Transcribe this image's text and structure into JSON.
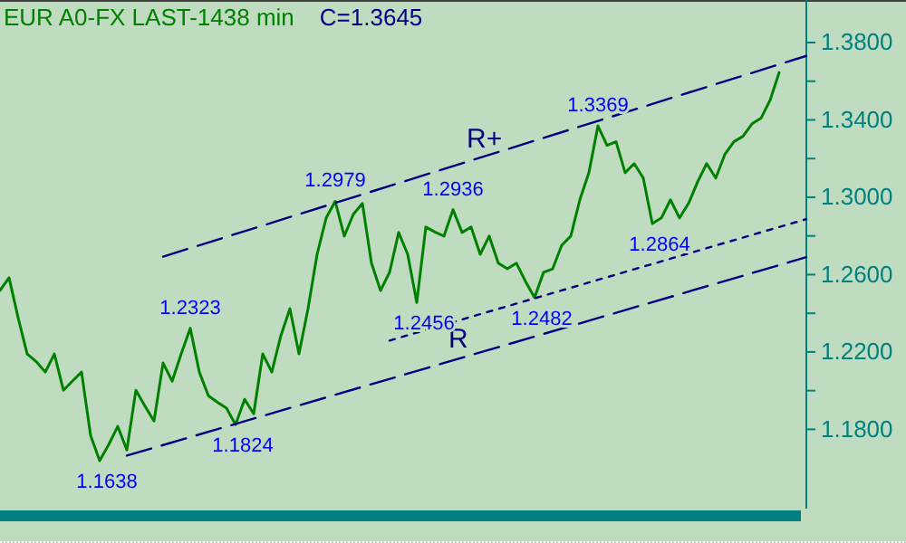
{
  "chart_data": {
    "type": "line",
    "title": "EUR A0-FX LAST-1438 min",
    "subtitle": "C=1.3645",
    "categories": [
      null,
      null,
      null,
      null,
      null,
      null,
      null,
      null,
      null,
      null,
      null,
      null,
      null,
      null,
      null,
      null,
      null,
      null,
      null,
      null,
      null,
      null,
      null,
      null,
      null,
      null,
      null,
      null,
      null,
      null,
      null,
      null,
      null,
      null,
      null,
      null,
      null,
      null,
      null,
      null,
      null,
      null,
      null,
      null,
      null,
      null,
      null,
      null,
      null,
      null,
      null,
      null,
      null,
      null,
      null,
      null,
      null,
      null,
      null,
      null,
      null,
      null,
      null,
      null,
      null,
      null,
      null,
      null,
      null,
      null,
      null,
      null,
      null,
      null,
      null,
      null,
      null,
      null,
      null,
      null,
      null,
      null,
      null,
      null,
      null,
      null,
      null,
      null,
      null,
      null
    ],
    "ylim": [
      1.139,
      1.402
    ],
    "yticks": [
      {
        "value": 1.18,
        "label": "1.1800"
      },
      {
        "value": 1.2,
        "label": null
      },
      {
        "value": 1.22,
        "label": "1.2200"
      },
      {
        "value": 1.24,
        "label": null
      },
      {
        "value": 1.26,
        "label": "1.2600"
      },
      {
        "value": 1.28,
        "label": null
      },
      {
        "value": 1.3,
        "label": "1.3000"
      },
      {
        "value": 1.32,
        "label": null
      },
      {
        "value": 1.34,
        "label": "1.3400"
      },
      {
        "value": 1.36,
        "label": null
      },
      {
        "value": 1.38,
        "label": "1.3800"
      }
    ],
    "tick_labels": "y",
    "marker": "none",
    "series": [
      {
        "color": "#008000",
        "line_style": "solid",
        "values": [
          1.2518,
          1.2584,
          1.2377,
          1.219,
          1.215,
          1.2096,
          1.219,
          1.2002,
          1.205,
          1.2096,
          1.1768,
          1.1638,
          1.1721,
          1.1815,
          1.1693,
          1.2002,
          1.192,
          1.1843,
          1.2143,
          1.2049,
          1.219,
          1.2323,
          1.2096,
          1.1974,
          1.194,
          1.1909,
          1.1824,
          1.1955,
          1.188,
          1.219,
          1.2096,
          1.2284,
          1.2424,
          1.219,
          1.2424,
          1.2705,
          1.2893,
          1.2979,
          1.2799,
          1.2912,
          1.2968,
          1.2659,
          1.2518,
          1.2612,
          1.2818,
          1.2705,
          1.2456,
          1.2846,
          1.282,
          1.2799,
          1.2936,
          1.2818,
          1.2846,
          1.2705,
          1.2799,
          1.2659,
          1.263,
          1.2659,
          1.2565,
          1.2482,
          1.2612,
          1.263,
          1.2752,
          1.2799,
          1.2987,
          1.3127,
          1.3369,
          1.3268,
          1.3287,
          1.3127,
          1.3174,
          1.3099,
          1.2864,
          1.2893,
          1.2987,
          1.2893,
          1.2968,
          1.308,
          1.3174,
          1.3099,
          1.3221,
          1.3287,
          1.3315,
          1.338,
          1.3409,
          1.3502,
          1.3645,
          null,
          null,
          null
        ]
      },
      {
        "name": "R+",
        "color": "#000080",
        "line_style": "dashed",
        "values": [
          null,
          null,
          null,
          null,
          null,
          null,
          null,
          null,
          null,
          null,
          null,
          null,
          null,
          null,
          null,
          null,
          null,
          null,
          1.2693,
          null,
          null,
          null,
          null,
          null,
          null,
          null,
          null,
          null,
          null,
          null,
          null,
          null,
          null,
          null,
          null,
          null,
          null,
          null,
          null,
          null,
          null,
          null,
          null,
          null,
          null,
          null,
          null,
          null,
          null,
          null,
          null,
          null,
          null,
          null,
          null,
          null,
          null,
          null,
          null,
          null,
          null,
          null,
          null,
          null,
          null,
          null,
          null,
          null,
          null,
          null,
          null,
          null,
          null,
          null,
          null,
          null,
          null,
          null,
          null,
          null,
          null,
          null,
          null,
          null,
          null,
          null,
          null,
          null,
          null,
          1.3731
        ]
      },
      {
        "name": "R",
        "color": "#000080",
        "line_style": "dashed",
        "values": [
          null,
          null,
          null,
          null,
          null,
          null,
          null,
          null,
          null,
          null,
          null,
          null,
          null,
          null,
          1.1664,
          null,
          null,
          null,
          null,
          null,
          null,
          null,
          null,
          null,
          null,
          null,
          null,
          null,
          null,
          null,
          null,
          null,
          null,
          null,
          null,
          null,
          null,
          null,
          null,
          null,
          null,
          null,
          null,
          null,
          null,
          null,
          null,
          null,
          null,
          null,
          null,
          null,
          null,
          null,
          null,
          null,
          null,
          null,
          null,
          null,
          null,
          null,
          null,
          null,
          null,
          null,
          null,
          null,
          null,
          null,
          null,
          null,
          null,
          null,
          null,
          null,
          null,
          null,
          null,
          null,
          null,
          null,
          null,
          null,
          null,
          null,
          null,
          null,
          null,
          1.269
        ]
      },
      {
        "color": "#000080",
        "line_style": "dotted",
        "values": [
          null,
          null,
          null,
          null,
          null,
          null,
          null,
          null,
          null,
          null,
          null,
          null,
          null,
          null,
          null,
          null,
          null,
          null,
          null,
          null,
          null,
          null,
          null,
          null,
          null,
          null,
          null,
          null,
          null,
          null,
          null,
          null,
          null,
          null,
          null,
          null,
          null,
          null,
          null,
          null,
          null,
          null,
          null,
          1.2259,
          null,
          null,
          null,
          null,
          null,
          null,
          null,
          null,
          null,
          null,
          null,
          null,
          null,
          null,
          null,
          null,
          null,
          null,
          null,
          null,
          null,
          null,
          null,
          null,
          null,
          null,
          null,
          null,
          null,
          null,
          null,
          null,
          null,
          null,
          null,
          null,
          null,
          null,
          null,
          null,
          null,
          null,
          null,
          null,
          null,
          1.2887
        ]
      }
    ],
    "annotations": [
      {
        "text": "1.1638",
        "y": 1.1638
      },
      {
        "text": "1.2323",
        "y": 1.2323
      },
      {
        "text": "1.1824",
        "y": 1.1824
      },
      {
        "text": "1.2979",
        "y": 1.2979
      },
      {
        "text": "1.2456",
        "y": 1.2456
      },
      {
        "text": "1.2936",
        "y": 1.2936
      },
      {
        "text": "1.2482",
        "y": 1.2482
      },
      {
        "text": "1.3369",
        "y": 1.3369
      },
      {
        "text": "1.2864",
        "y": 1.2864
      }
    ]
  }
}
